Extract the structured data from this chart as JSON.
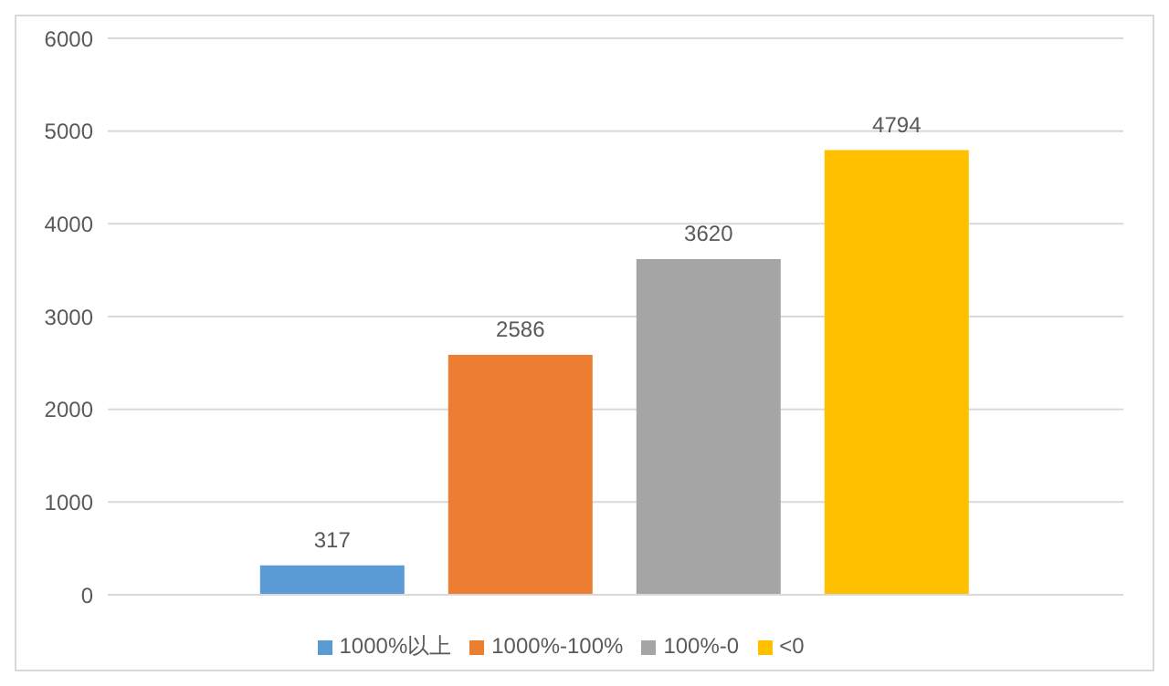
{
  "chart_data": {
    "type": "bar",
    "categories": [
      null
    ],
    "series": [
      {
        "name": "1000%以上",
        "color": "#5b9bd5",
        "values": [
          317
        ]
      },
      {
        "name": "1000%-100%",
        "color": "#ed7d31",
        "values": [
          2586
        ]
      },
      {
        "name": "100%-0",
        "color": "#a5a5a5",
        "values": [
          3620
        ]
      },
      {
        "name": "<0",
        "color": "#ffc000",
        "values": [
          4794
        ]
      }
    ],
    "ylim": [
      0,
      6000
    ],
    "yticks": [
      0,
      1000,
      2000,
      3000,
      4000,
      5000,
      6000
    ],
    "grid": "y",
    "legend": "bottom",
    "data_labels": true
  }
}
